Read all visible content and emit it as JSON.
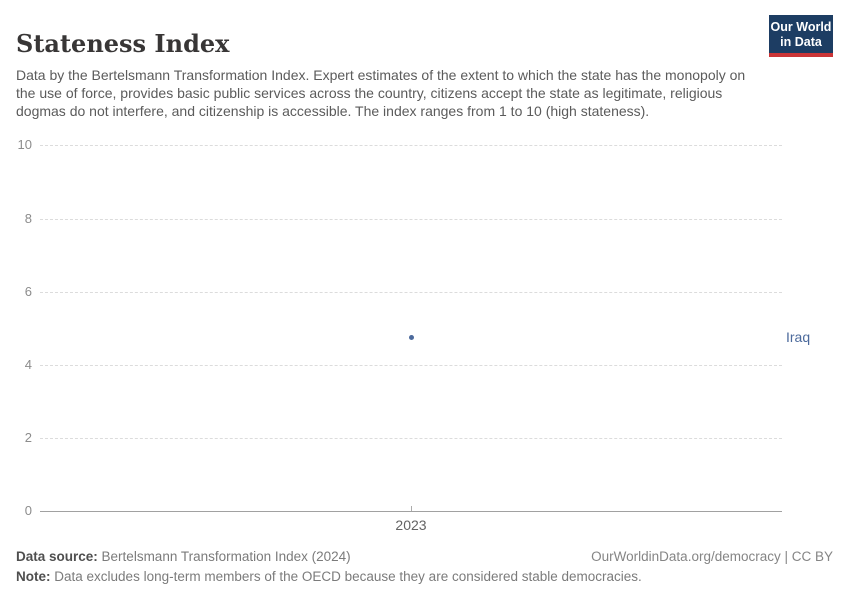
{
  "header": {
    "title": "Stateness Index",
    "logo": {
      "line1": "Our World",
      "line2": "in Data",
      "bg_color": "#1d3d63",
      "accent_color": "#cb3537"
    }
  },
  "subtitle": "Data by the Bertelsmann Transformation Index. Expert estimates of the extent to which the state has the monopoly on the use of force, provides basic public services across the country, citizens accept the state as legitimate, religious dogmas do not interfere, and citizenship is accessible. The index ranges from 1 to 10 (high stateness).",
  "chart_data": {
    "type": "scatter",
    "title": "Stateness Index",
    "series": [
      {
        "name": "Iraq",
        "x": [
          2023
        ],
        "values": [
          4.75
        ],
        "color": "#4C6A9C"
      }
    ],
    "categories": [
      "2023"
    ],
    "xticks": [
      "2023"
    ],
    "yticks": [
      0,
      2,
      4,
      6,
      8,
      10
    ],
    "ylim": [
      0,
      10
    ],
    "xlabel": "",
    "ylabel": "",
    "grid": "horizontal-dashed",
    "legend_position": "right-of-point-label",
    "entity_label": "Iraq"
  },
  "footer": {
    "source_label": "Data source:",
    "source": "Bertelsmann Transformation Index (2024)",
    "attribution": "OurWorldinData.org/democracy | CC BY",
    "note_label": "Note:",
    "note": "Data excludes long-term members of the OECD because they are considered stable democracies."
  }
}
